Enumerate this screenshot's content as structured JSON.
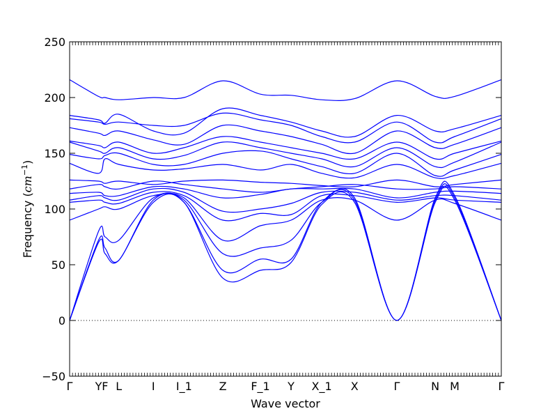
{
  "chart_data": {
    "type": "line",
    "title": "",
    "xlabel": "Wave vector",
    "ylabel": "Frequency ($cm^{-1}$)",
    "ylabel_parts": {
      "base": "Frequency (",
      "unit": "cm",
      "exp": "−1",
      "close": ")"
    },
    "ylim": [
      -50,
      250
    ],
    "yticks": [
      -50,
      0,
      50,
      100,
      150,
      200,
      250
    ],
    "xlim": [
      0,
      1
    ],
    "xticks": [
      {
        "label": "Γ",
        "x": 0.0
      },
      {
        "label": "Y",
        "x": 0.067
      },
      {
        "label": "F",
        "x": 0.082
      },
      {
        "label": "L",
        "x": 0.114
      },
      {
        "label": "I",
        "x": 0.194
      },
      {
        "label": "I_1",
        "x": 0.265
      },
      {
        "label": "Z",
        "x": 0.355
      },
      {
        "label": "F_1",
        "x": 0.442
      },
      {
        "label": "Y",
        "x": 0.513
      },
      {
        "label": "X_1",
        "x": 0.584
      },
      {
        "label": "X",
        "x": 0.66
      },
      {
        "label": "Γ",
        "x": 0.758
      },
      {
        "label": "N",
        "x": 0.847
      },
      {
        "label": "M",
        "x": 0.892
      },
      {
        "label": "Γ",
        "x": 1.0
      }
    ],
    "zero_line": {
      "y": 0,
      "style": "dotted"
    },
    "series_color": "#0000ff",
    "series": [
      {
        "x": [
          0,
          0.067,
          0.082,
          0.114,
          0.194,
          0.265,
          0.355,
          0.442,
          0.513,
          0.584,
          0.66,
          0.758,
          0.847,
          0.892,
          1
        ],
        "values": [
          216,
          201,
          200,
          198,
          200,
          200,
          215,
          203,
          202,
          198,
          199,
          215,
          201,
          201,
          216
        ]
      },
      {
        "x": [
          0,
          0.067,
          0.082,
          0.114,
          0.194,
          0.265,
          0.355,
          0.442,
          0.513,
          0.584,
          0.66,
          0.758,
          0.847,
          0.892,
          1
        ],
        "values": [
          184,
          180,
          177,
          185,
          170,
          168,
          190,
          184,
          178,
          170,
          165,
          184,
          170,
          172,
          184
        ]
      },
      {
        "x": [
          0,
          0.067,
          0.082,
          0.114,
          0.194,
          0.265,
          0.355,
          0.442,
          0.513,
          0.584,
          0.66,
          0.758,
          0.847,
          0.892,
          1
        ],
        "values": [
          181,
          178,
          176,
          178,
          175,
          175,
          186,
          180,
          175,
          165,
          160,
          178,
          160,
          165,
          181
        ]
      },
      {
        "x": [
          0,
          0.067,
          0.082,
          0.114,
          0.194,
          0.265,
          0.355,
          0.442,
          0.513,
          0.584,
          0.66,
          0.758,
          0.847,
          0.892,
          1
        ],
        "values": [
          173,
          168,
          166,
          170,
          162,
          158,
          175,
          170,
          165,
          158,
          150,
          170,
          155,
          158,
          173
        ]
      },
      {
        "x": [
          0,
          0.067,
          0.082,
          0.114,
          0.194,
          0.265,
          0.355,
          0.442,
          0.513,
          0.584,
          0.66,
          0.758,
          0.847,
          0.892,
          1
        ],
        "values": [
          161,
          157,
          155,
          160,
          150,
          155,
          165,
          160,
          155,
          150,
          145,
          160,
          145,
          150,
          161
        ]
      },
      {
        "x": [
          0,
          0.067,
          0.082,
          0.114,
          0.194,
          0.265,
          0.355,
          0.442,
          0.513,
          0.584,
          0.66,
          0.758,
          0.847,
          0.892,
          1
        ],
        "values": [
          160,
          152,
          150,
          155,
          145,
          148,
          160,
          155,
          150,
          145,
          138,
          155,
          138,
          142,
          160
        ]
      },
      {
        "x": [
          0,
          0.067,
          0.082,
          0.114,
          0.194,
          0.265,
          0.355,
          0.442,
          0.513,
          0.584,
          0.66,
          0.758,
          0.847,
          0.892,
          1
        ],
        "values": [
          149,
          145,
          148,
          150,
          140,
          140,
          150,
          152,
          145,
          138,
          132,
          150,
          130,
          135,
          149
        ]
      },
      {
        "x": [
          0,
          0.067,
          0.082,
          0.114,
          0.194,
          0.265,
          0.355,
          0.442,
          0.513,
          0.584,
          0.66,
          0.758,
          0.847,
          0.892,
          1
        ],
        "values": [
          141,
          132,
          145,
          140,
          135,
          136,
          140,
          135,
          140,
          132,
          128,
          140,
          128,
          130,
          141
        ]
      },
      {
        "x": [
          0,
          0.067,
          0.082,
          0.114,
          0.194,
          0.265,
          0.355,
          0.442,
          0.513,
          0.584,
          0.66,
          0.758,
          0.847,
          0.892,
          1
        ],
        "values": [
          126,
          125,
          123,
          125,
          122,
          125,
          126,
          124,
          123,
          121,
          120,
          126,
          120,
          122,
          126
        ]
      },
      {
        "x": [
          0,
          0.067,
          0.082,
          0.114,
          0.194,
          0.265,
          0.355,
          0.442,
          0.513,
          0.584,
          0.66,
          0.758,
          0.847,
          0.892,
          1
        ],
        "values": [
          118,
          122,
          120,
          118,
          125,
          122,
          118,
          115,
          118,
          120,
          122,
          118,
          118,
          120,
          118
        ]
      },
      {
        "x": [
          0,
          0.067,
          0.082,
          0.114,
          0.194,
          0.265,
          0.355,
          0.442,
          0.513,
          0.584,
          0.66,
          0.758,
          0.847,
          0.892,
          1
        ],
        "values": [
          114,
          115,
          112,
          112,
          120,
          118,
          110,
          113,
          118,
          118,
          118,
          110,
          115,
          116,
          114
        ]
      },
      {
        "x": [
          0,
          0.067,
          0.082,
          0.114,
          0.194,
          0.265,
          0.355,
          0.442,
          0.513,
          0.584,
          0.66,
          0.758,
          0.847,
          0.892,
          1
        ],
        "values": [
          108,
          112,
          110,
          108,
          118,
          115,
          98,
          100,
          105,
          115,
          115,
          108,
          112,
          112,
          108
        ]
      },
      {
        "x": [
          0,
          0.067,
          0.082,
          0.114,
          0.194,
          0.265,
          0.355,
          0.442,
          0.513,
          0.584,
          0.66,
          0.758,
          0.847,
          0.892,
          1
        ],
        "values": [
          106,
          108,
          106,
          105,
          115,
          112,
          90,
          96,
          95,
          112,
          112,
          106,
          110,
          108,
          106
        ]
      },
      {
        "x": [
          0,
          0.067,
          0.082,
          0.114,
          0.194,
          0.265,
          0.355,
          0.442,
          0.513,
          0.584,
          0.66,
          0.758,
          0.847,
          0.892,
          1
        ],
        "values": [
          90,
          100,
          102,
          100,
          112,
          110,
          72,
          85,
          90,
          108,
          108,
          90,
          108,
          105,
          90
        ]
      },
      {
        "x": [
          0,
          0.067,
          0.082,
          0.114,
          0.194,
          0.265,
          0.355,
          0.442,
          0.513,
          0.584,
          0.66,
          0.758,
          0.847,
          0.892,
          1
        ],
        "values": [
          0,
          80,
          75,
          72,
          110,
          108,
          60,
          65,
          72,
          106,
          110,
          0,
          110,
          112,
          0
        ]
      },
      {
        "x": [
          0,
          0.067,
          0.082,
          0.114,
          0.194,
          0.265,
          0.355,
          0.442,
          0.513,
          0.584,
          0.66,
          0.758,
          0.847,
          0.892,
          1
        ],
        "values": [
          0,
          72,
          65,
          54,
          108,
          106,
          45,
          55,
          55,
          106,
          108,
          0,
          108,
          110,
          0
        ]
      },
      {
        "x": [
          0,
          0.067,
          0.082,
          0.114,
          0.194,
          0.265,
          0.355,
          0.442,
          0.513,
          0.584,
          0.66,
          0.758,
          0.847,
          0.892,
          1
        ],
        "values": [
          0,
          70,
          60,
          54,
          106,
          106,
          38,
          45,
          52,
          104,
          106,
          0,
          106,
          108,
          0
        ]
      }
    ]
  }
}
